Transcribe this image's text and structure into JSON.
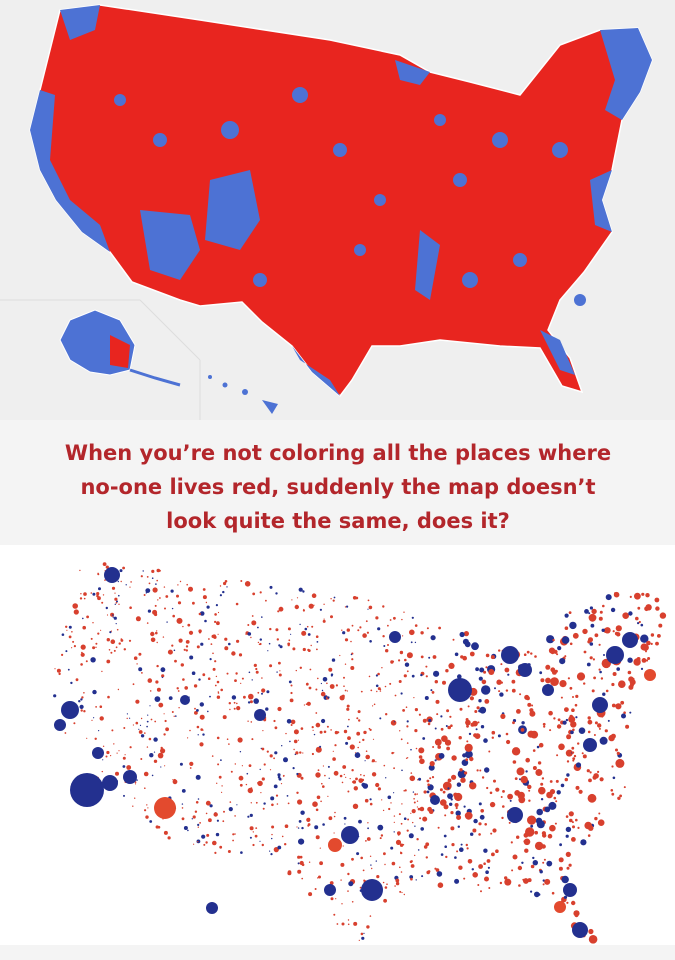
{
  "caption": {
    "lines": [
      "When you’re not coloring all the places where",
      "no-one lives red, suddenly the map doesn’t",
      "look quite the same, does it?"
    ]
  }
}
